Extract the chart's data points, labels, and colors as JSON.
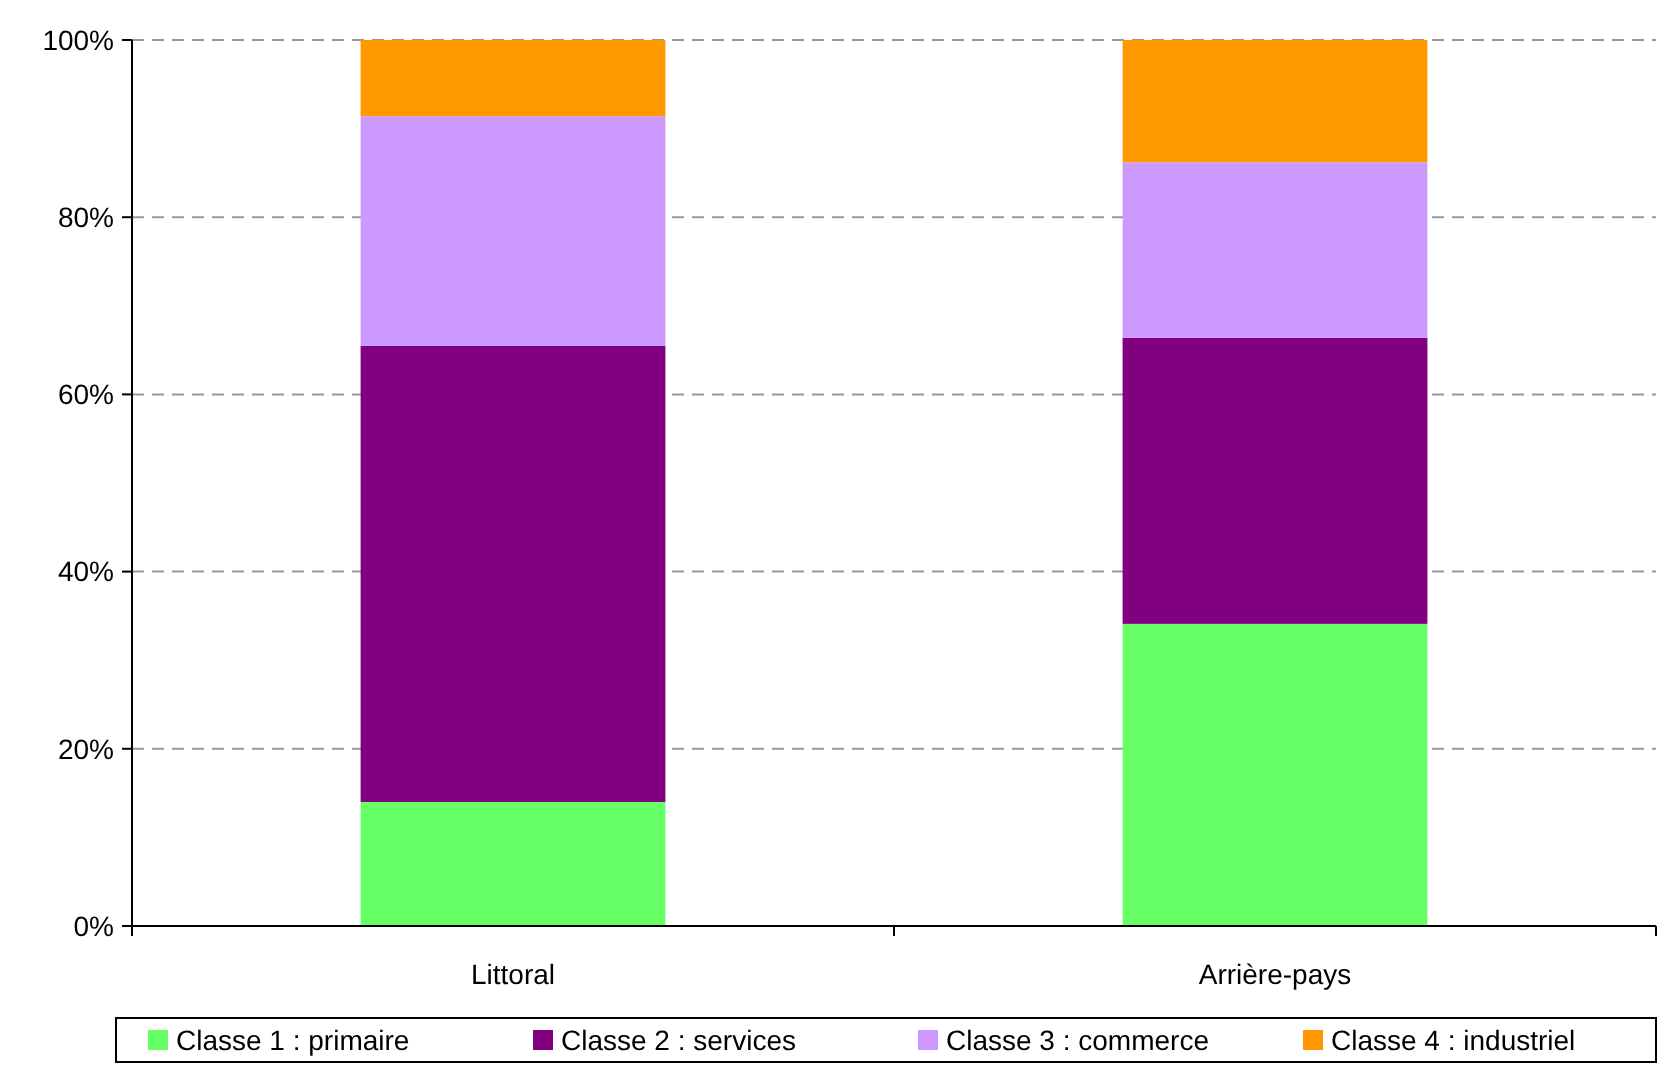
{
  "chart_data": {
    "type": "bar",
    "stacked": true,
    "categories": [
      "Littoral",
      "Arrière-pays"
    ],
    "series": [
      {
        "name": "Classe 1 : primaire",
        "color": "#66ff66",
        "values": [
          14,
          34.1
        ]
      },
      {
        "name": "Classe 2 : services",
        "color": "#800080",
        "values": [
          51.5,
          32.3
        ]
      },
      {
        "name": "Classe 3 : commerce",
        "color": "#cc99ff",
        "values": [
          25.9,
          19.8
        ]
      },
      {
        "name": "Classe 4 : industriel",
        "color": "#ff9900",
        "values": [
          8.6,
          13.8
        ]
      }
    ],
    "ylim": [
      0,
      100
    ],
    "yticks": [
      {
        "value": 0,
        "label": "0%"
      },
      {
        "value": 20,
        "label": "20%"
      },
      {
        "value": 40,
        "label": "40%"
      },
      {
        "value": 60,
        "label": "60%"
      },
      {
        "value": 80,
        "label": "80%"
      },
      {
        "value": 100,
        "label": "100%"
      }
    ],
    "grid": "y",
    "legend": "bottom"
  }
}
